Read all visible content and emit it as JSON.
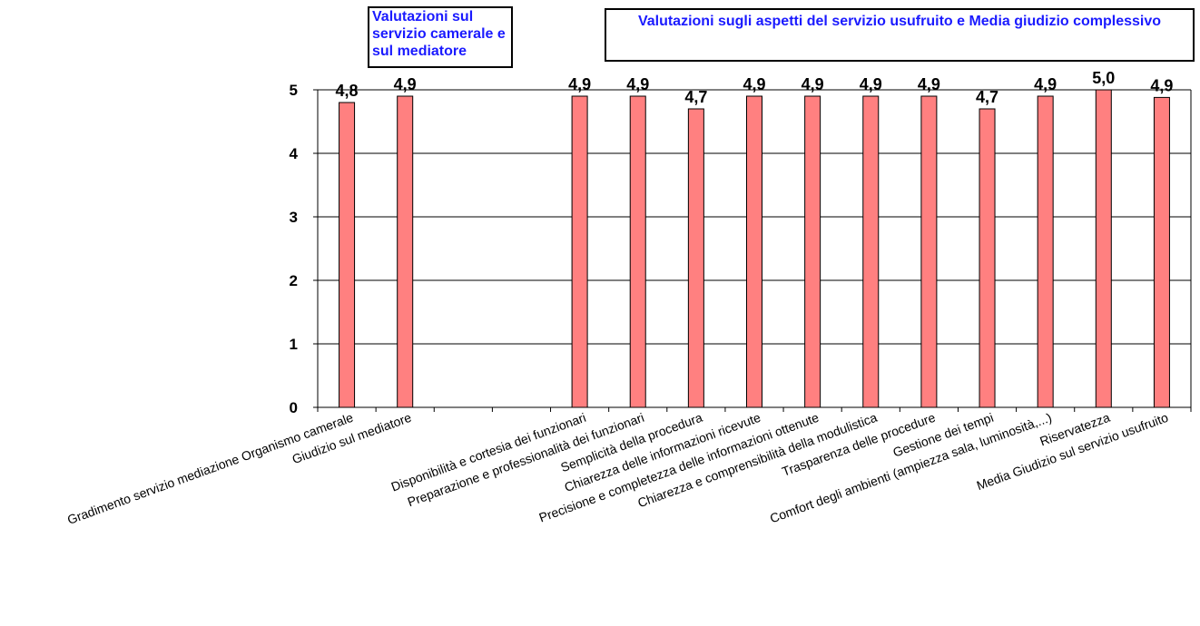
{
  "annotations": {
    "left_box": "Valutazioni sul servizio camerale e sul mediatore",
    "right_box": "Valutazioni sugli aspetti del servizio usufruito e Media giudizio complessivo"
  },
  "chart_data": {
    "type": "bar",
    "categories": [
      "Gradimento servizio mediazione Organismo camerale",
      "Giudizio sul mediatore",
      "",
      "",
      "Disponibilità e cortesia dei funzionari",
      "Preparazione e professionalità dei funzionari",
      "Semplicità della procedura",
      "Chiarezza delle informazioni ricevute",
      "Precisione e completezza delle informazioni ottenute",
      "Chiarezza e comprensibilità della modulistica",
      "Trasparenza delle procedure",
      "Gestione dei tempi",
      "Comfort degli ambienti (ampiezza sala, luminosità,...)",
      "Riservatezza",
      "Media Giudizio sul servizio usufruito"
    ],
    "values": [
      4.8,
      4.9,
      null,
      null,
      4.9,
      4.9,
      4.7,
      4.9,
      4.9,
      4.9,
      4.9,
      4.7,
      4.9,
      5.0,
      4.88
    ],
    "data_labels": [
      "4,8",
      "4,9",
      "",
      "",
      "4,9",
      "4,9",
      "4,7",
      "4,9",
      "4,9",
      "4,9",
      "4,9",
      "4,7",
      "4,9",
      "5,0",
      "4,9"
    ],
    "yticks": [
      "0",
      "1",
      "2",
      "3",
      "4",
      "5"
    ],
    "ylim": [
      0,
      5
    ],
    "grid": true,
    "bar_color": "#ff8080"
  }
}
